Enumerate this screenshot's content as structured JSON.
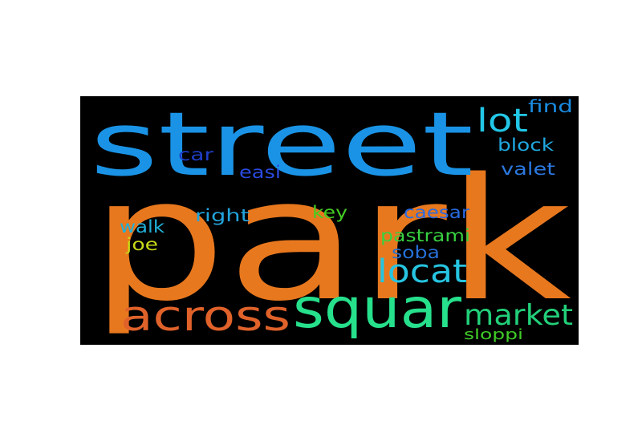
{
  "wordcloud": {
    "background": "#000000",
    "words": [
      {
        "text": "park",
        "color": "#e8781e"
      },
      {
        "text": "street",
        "color": "#1a93e6"
      },
      {
        "text": "squar",
        "color": "#26e08c"
      },
      {
        "text": "across",
        "color": "#e0622a"
      },
      {
        "text": "market",
        "color": "#22d07a"
      },
      {
        "text": "locat",
        "color": "#26c4e0"
      },
      {
        "text": "lot",
        "color": "#22c6e6"
      },
      {
        "text": "find",
        "color": "#1a8ae0"
      },
      {
        "text": "block",
        "color": "#20a8e0"
      },
      {
        "text": "valet",
        "color": "#2a78e0"
      },
      {
        "text": "car",
        "color": "#1e3ec8"
      },
      {
        "text": "easi",
        "color": "#2a4ae0"
      },
      {
        "text": "right",
        "color": "#22a4dc"
      },
      {
        "text": "key",
        "color": "#44cc22"
      },
      {
        "text": "caesar",
        "color": "#2a6ae0"
      },
      {
        "text": "walk",
        "color": "#20b0d8"
      },
      {
        "text": "joe",
        "color": "#c8d818"
      },
      {
        "text": "pastrami",
        "color": "#38d040"
      },
      {
        "text": "soba",
        "color": "#2670d8"
      },
      {
        "text": "sloppi",
        "color": "#40cc28"
      }
    ]
  }
}
